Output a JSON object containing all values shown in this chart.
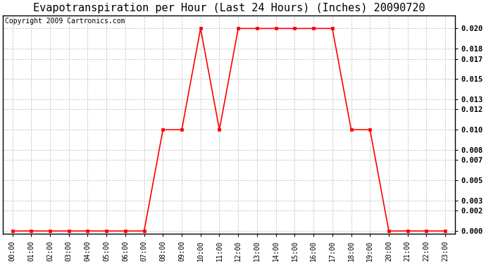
{
  "title": "Evapotranspiration per Hour (Last 24 Hours) (Inches) 20090720",
  "copyright": "Copyright 2009 Cartronics.com",
  "hours": [
    "00:00",
    "01:00",
    "02:00",
    "03:00",
    "04:00",
    "05:00",
    "06:00",
    "07:00",
    "08:00",
    "09:00",
    "10:00",
    "11:00",
    "12:00",
    "13:00",
    "14:00",
    "15:00",
    "16:00",
    "17:00",
    "18:00",
    "19:00",
    "20:00",
    "21:00",
    "22:00",
    "23:00"
  ],
  "values": [
    0.0,
    0.0,
    0.0,
    0.0,
    0.0,
    0.0,
    0.0,
    0.0,
    0.01,
    0.01,
    0.02,
    0.01,
    0.02,
    0.02,
    0.02,
    0.02,
    0.02,
    0.02,
    0.01,
    0.01,
    0.0,
    0.0,
    0.0,
    0.0
  ],
  "line_color": "#ff0000",
  "marker_color": "#ff0000",
  "background_color": "#ffffff",
  "grid_color": "#c8c8c8",
  "title_fontsize": 11,
  "copyright_fontsize": 7,
  "ytick_labels": [
    "0.000",
    "0.002",
    "0.003",
    "0.005",
    "0.007",
    "0.008",
    "0.010",
    "0.012",
    "0.013",
    "0.015",
    "0.017",
    "0.018",
    "0.020"
  ],
  "ytick_values": [
    0.0,
    0.002,
    0.003,
    0.005,
    0.007,
    0.008,
    0.01,
    0.012,
    0.013,
    0.015,
    0.017,
    0.018,
    0.02
  ],
  "ylim": [
    -0.0003,
    0.0213
  ],
  "xlim": [
    -0.5,
    23.5
  ]
}
